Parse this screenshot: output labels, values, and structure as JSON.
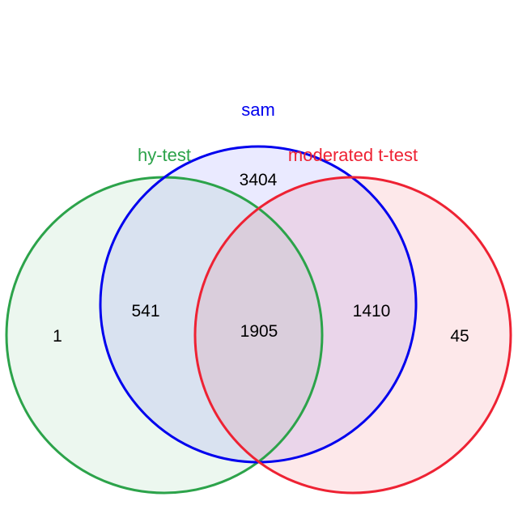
{
  "sets": {
    "sam": {
      "label": "sam",
      "color": "#0000ee"
    },
    "hy_test": {
      "label": "hy-test",
      "color": "#2ca34a"
    },
    "moderated": {
      "label": "moderated t-test",
      "color": "#ee2233"
    }
  },
  "regions": {
    "sam_only": "3404",
    "hy_only": "1",
    "moderated_only": "45",
    "hy_sam": "541",
    "sam_moderated": "1410",
    "all_three": "1905"
  }
}
